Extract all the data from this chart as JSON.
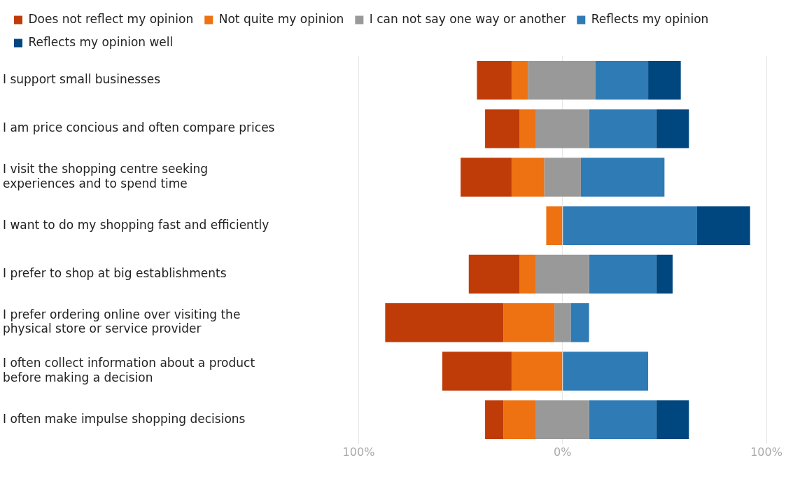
{
  "chart_data": {
    "type": "bar",
    "orientation": "horizontal",
    "categories": [
      "I support small businesses",
      "I am price concious and often compare prices",
      "I visit the shopping centre seeking experiences and to spend time",
      "I want to do my shopping fast and efficiently",
      "I prefer to shop at big establishments",
      "I prefer ordering online over visiting the physical store or service provider",
      "I often collect information about a product before making a decision",
      "I often make impulse shopping decisions"
    ],
    "series": [
      {
        "name": "Does not reflect my opinion",
        "color": "#bf3c08",
        "base": [
          -42,
          -38,
          -50,
          null,
          -46,
          -87,
          -59,
          -38
        ],
        "values": [
          17,
          17,
          25,
          null,
          25,
          58,
          34,
          9
        ]
      },
      {
        "name": "Not quite my opinion",
        "color": "#ee7211",
        "base": [
          -25,
          -21,
          -25,
          -8,
          -21,
          -29,
          -25,
          -29
        ],
        "values": [
          8,
          8,
          16,
          8,
          8,
          25,
          25,
          16
        ]
      },
      {
        "name": "I can not say one way or another",
        "color": "#999999",
        "base": [
          -17,
          -13,
          -9,
          null,
          -13,
          -4,
          null,
          -13
        ],
        "values": [
          33,
          26,
          18,
          null,
          26,
          8,
          null,
          26
        ]
      },
      {
        "name": "Reflects my opinion",
        "color": "#2e7bb6",
        "base": [
          16,
          13,
          9,
          0,
          13,
          4,
          0,
          13
        ],
        "values": [
          26,
          33,
          41,
          66,
          33,
          9,
          42,
          33
        ]
      },
      {
        "name": "Reflects my opinion well",
        "color": "#00467f",
        "base": [
          42,
          46,
          null,
          66,
          46,
          null,
          null,
          46
        ],
        "values": [
          16,
          16,
          null,
          26,
          8,
          null,
          null,
          16
        ]
      }
    ],
    "xlim": [
      -100,
      100
    ],
    "xticks": [
      {
        "value": -100,
        "label": "100%"
      },
      {
        "value": 0,
        "label": "0%"
      },
      {
        "value": 100,
        "label": "100%"
      }
    ],
    "grid": "x",
    "legend": "top left"
  }
}
